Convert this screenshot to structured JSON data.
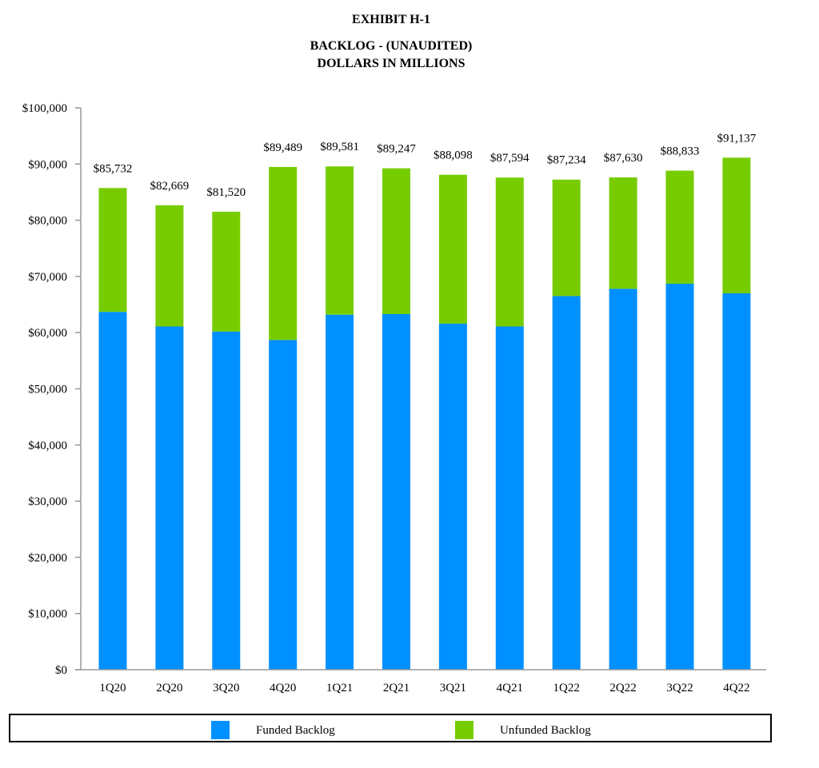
{
  "header": {
    "exhibit": "EXHIBIT H-1",
    "title_line1": "BACKLOG - (UNAUDITED)",
    "title_line2": "DOLLARS IN MILLIONS"
  },
  "colors": {
    "funded": "#0090FF",
    "unfunded": "#77CC00",
    "axis": "#999999"
  },
  "chart_data": {
    "type": "bar",
    "stacked": true,
    "title": "BACKLOG - (UNAUDITED)",
    "subtitle": "DOLLARS IN MILLIONS",
    "categories": [
      "1Q20",
      "2Q20",
      "3Q20",
      "4Q20",
      "1Q21",
      "2Q21",
      "3Q21",
      "4Q21",
      "1Q22",
      "2Q22",
      "3Q22",
      "4Q22"
    ],
    "series": [
      {
        "name": "Funded Backlog",
        "values": [
          63700,
          61100,
          60200,
          58700,
          63200,
          63300,
          61600,
          61100,
          66500,
          67800,
          68700,
          67000
        ]
      },
      {
        "name": "Unfunded Backlog",
        "values": [
          22032,
          21569,
          21320,
          30789,
          26381,
          25947,
          26498,
          26494,
          20734,
          19830,
          20133,
          24137
        ]
      }
    ],
    "totals": [
      85732,
      82669,
      81520,
      89489,
      89581,
      89247,
      88098,
      87594,
      87234,
      87630,
      88833,
      91137
    ],
    "total_labels": [
      "$85,732",
      "$82,669",
      "$81,520",
      "$89,489",
      "$89,581",
      "$89,247",
      "$88,098",
      "$87,594",
      "$87,234",
      "$87,630",
      "$88,833",
      "$91,137"
    ],
    "ylim": [
      0,
      100000
    ],
    "yticks": [
      0,
      10000,
      20000,
      30000,
      40000,
      50000,
      60000,
      70000,
      80000,
      90000,
      100000
    ],
    "ytick_labels": [
      "$0",
      "$10,000",
      "$20,000",
      "$30,000",
      "$40,000",
      "$50,000",
      "$60,000",
      "$70,000",
      "$80,000",
      "$90,000",
      "$100,000"
    ],
    "xlabel": "",
    "ylabel": "",
    "grid": false,
    "legend_position": "bottom"
  },
  "legend": {
    "funded_label": "Funded Backlog",
    "unfunded_label": "Unfunded Backlog"
  }
}
